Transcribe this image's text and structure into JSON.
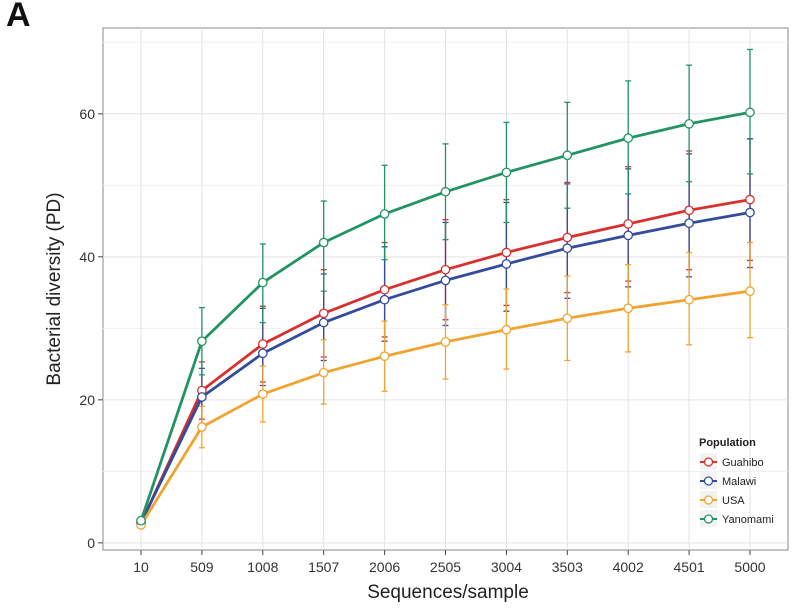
{
  "panel_label": "A",
  "chart_data": {
    "type": "line",
    "title": "",
    "xlabel": "Sequences/sample",
    "ylabel": "Bacterial diversity (PD)",
    "categories": [
      "10",
      "509",
      "1008",
      "1507",
      "2006",
      "2505",
      "3004",
      "3503",
      "4002",
      "4501",
      "5000"
    ],
    "ylim": [
      -1,
      72
    ],
    "yticks": [
      0,
      20,
      40,
      60
    ],
    "grid": true,
    "legend": {
      "title": "Population",
      "placement": "bottom-right"
    },
    "series": [
      {
        "name": "Guahibo",
        "color": "#d7302f",
        "values": [
          2.7,
          21.3,
          27.8,
          32.1,
          35.4,
          38.2,
          40.6,
          42.7,
          44.6,
          46.5,
          48.0
        ],
        "err_low": [
          2.3,
          17.3,
          22.5,
          26.0,
          28.8,
          31.2,
          33.2,
          35.0,
          36.6,
          38.2,
          39.5
        ],
        "err_high": [
          3.1,
          25.3,
          33.1,
          38.2,
          42.0,
          45.2,
          48.0,
          50.4,
          52.6,
          54.8,
          56.5
        ]
      },
      {
        "name": "Malawi",
        "color": "#344c9c",
        "values": [
          2.8,
          20.4,
          26.5,
          30.8,
          34.0,
          36.7,
          39.0,
          41.2,
          43.0,
          44.7,
          46.2
        ],
        "err_low": [
          2.4,
          16.4,
          22.0,
          25.5,
          28.2,
          30.4,
          32.4,
          34.2,
          35.8,
          37.2,
          38.5
        ],
        "err_high": [
          3.2,
          24.4,
          32.8,
          37.6,
          41.4,
          44.8,
          47.6,
          50.2,
          52.3,
          54.4,
          56.5
        ]
      },
      {
        "name": "USA",
        "color": "#f0a430",
        "values": [
          2.5,
          16.2,
          20.8,
          23.8,
          26.1,
          28.1,
          29.8,
          31.4,
          32.8,
          34.0,
          35.2
        ],
        "err_low": [
          2.1,
          13.3,
          16.9,
          19.4,
          21.2,
          22.9,
          24.3,
          25.5,
          26.7,
          27.7,
          28.7
        ],
        "err_high": [
          2.9,
          19.1,
          24.7,
          28.4,
          31.0,
          33.3,
          35.5,
          37.3,
          38.9,
          40.6,
          42.0
        ]
      },
      {
        "name": "Yanomami",
        "color": "#219463",
        "values": [
          3.1,
          28.2,
          36.4,
          42.0,
          46.0,
          49.1,
          51.8,
          54.2,
          56.6,
          58.6,
          60.2
        ],
        "err_low": [
          2.6,
          23.5,
          30.8,
          35.2,
          39.6,
          42.4,
          44.8,
          46.8,
          48.8,
          50.5,
          51.6
        ],
        "err_high": [
          3.6,
          32.9,
          41.8,
          47.8,
          52.8,
          55.8,
          58.8,
          61.6,
          64.6,
          66.8,
          69.0
        ]
      }
    ]
  }
}
